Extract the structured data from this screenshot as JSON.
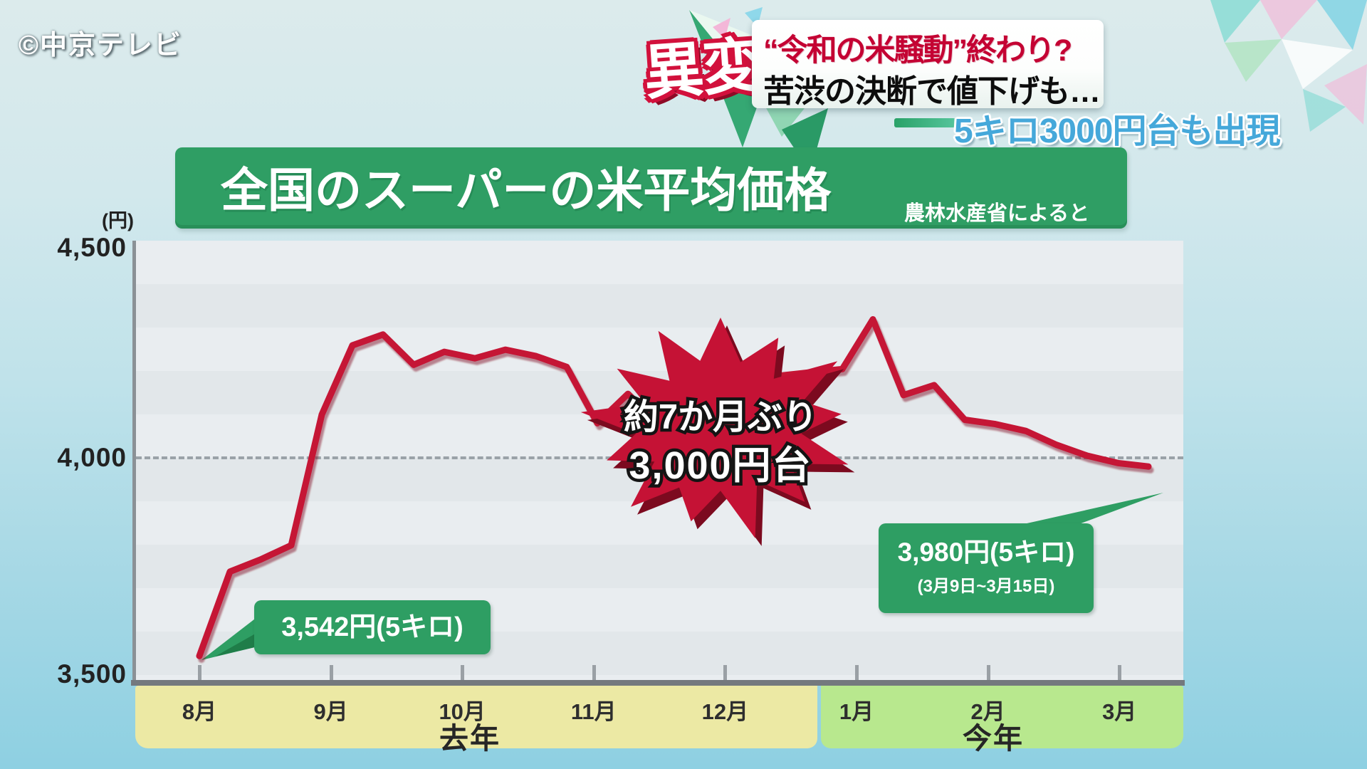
{
  "watermark": {
    "text": "©中京テレビ"
  },
  "headline": {
    "badge": "異変",
    "title_red": "“令和の米騒動”終わり?",
    "title_black": "苦渋の決断で値下げも…",
    "subheadline": "5キロ3000円台も出現"
  },
  "chart": {
    "title": "全国のスーパーの米平均価格",
    "source": "農林水産省によると",
    "y_unit": "(円)",
    "y_ticks": [
      "4,500",
      "4,000",
      "3,500"
    ],
    "month_labels": [
      "8月",
      "9月",
      "10月",
      "11月",
      "12月",
      "1月",
      "2月",
      "3月"
    ],
    "band_last_year": "去年",
    "band_this_year": "今年",
    "callout_start": "3,542円(5キロ)",
    "callout_end_price": "3,980円(5キロ)",
    "callout_end_period": "(3月9日~3月15日)",
    "burst_line1": "約7か月ぶり",
    "burst_line2": "3,000円台"
  },
  "chart_data": {
    "type": "line",
    "title": "全国のスーパーの米平均価格",
    "source": "農林水産省によると",
    "ylabel": "円",
    "ylim": [
      3500,
      4500
    ],
    "yticks": [
      3500,
      4000,
      4500
    ],
    "gridline": {
      "y": 4000,
      "style": "dashed"
    },
    "sampling": "weekly",
    "x_months": [
      "8月",
      "9月",
      "10月",
      "11月",
      "12月",
      "1月",
      "2月",
      "3月"
    ],
    "x_groups": [
      {
        "label": "去年",
        "months": [
          "8月",
          "9月",
          "10月",
          "11月",
          "12月"
        ]
      },
      {
        "label": "今年",
        "months": [
          "1月",
          "2月",
          "3月"
        ]
      }
    ],
    "series": [
      {
        "name": "米平均価格(5キロ)",
        "color": "#c51235",
        "values": [
          3542,
          3737,
          3765,
          3798,
          4100,
          4260,
          4285,
          4215,
          4245,
          4230,
          4250,
          4235,
          4210,
          4080,
          4148,
          4078,
          4152,
          4195,
          4200,
          4190,
          4198,
          4205,
          4320,
          4145,
          4168,
          4088,
          4078,
          4062,
          4030,
          4005,
          3988,
          3980
        ]
      }
    ],
    "annotations": [
      {
        "type": "callout",
        "at": "first_point",
        "value": 3542,
        "text": "3,542円(5キロ)"
      },
      {
        "type": "callout",
        "at": "last_point",
        "value": 3980,
        "text": "3,980円(5キロ)",
        "subtext": "(3月9日~3月15日)"
      },
      {
        "type": "burst",
        "text": [
          "約7か月ぶり",
          "3,000円台"
        ]
      }
    ],
    "legend": "none"
  },
  "colors": {
    "accent_green": "#2e9e63",
    "line_red": "#c51235",
    "band_yellow": "#ece9a4",
    "band_green": "#b8e88e",
    "headline_red": "#c40233",
    "subheadline_blue": "#45a8da",
    "bg_top": "#dcebec",
    "bg_bottom": "#8ed0e2",
    "plot_bg": "#e6ebee"
  }
}
